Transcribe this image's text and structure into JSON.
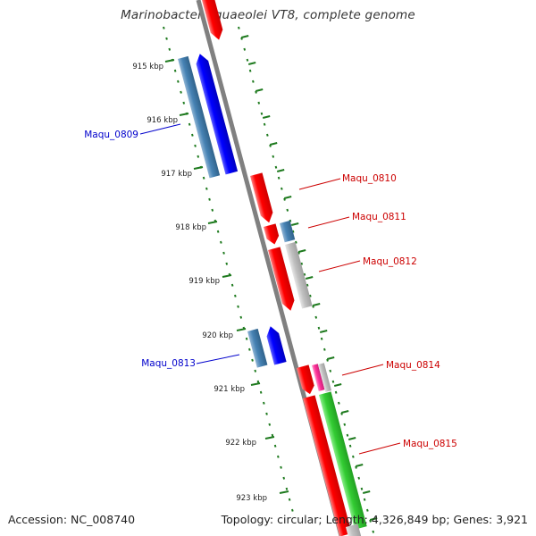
{
  "title": "Marinobacter aquaeolei VT8, complete genome",
  "footer": {
    "accession": "Accession: NC_008740",
    "topology": "Topology: circular; Length: 4,326,849 bp; Genes: 3,921"
  },
  "colors": {
    "backbone": "#808080",
    "ticks": "#1e7a1e",
    "forward_gene": "#ff0000",
    "reverse_gene": "#0000ff",
    "reverse_shaded": "#4682b4",
    "forward_grey": "#c0c0c0",
    "forward_green": "#33cc33",
    "forward_magenta": "#ff3399",
    "forward_label": "#cc0000",
    "reverse_label": "#0000cc"
  },
  "kbp_ticks": [
    "915 kbp",
    "916 kbp",
    "917 kbp",
    "918 kbp",
    "919 kbp",
    "920 kbp",
    "921 kbp",
    "922 kbp",
    "923 kbp"
  ],
  "gene_labels": {
    "reverse": [
      "Maqu_0809",
      "Maqu_0813"
    ],
    "forward": [
      "Maqu_0810",
      "Maqu_0811",
      "Maqu_0812",
      "Maqu_0814",
      "Maqu_0815"
    ]
  }
}
